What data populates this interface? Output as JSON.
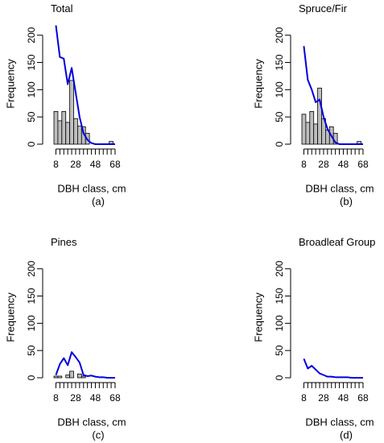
{
  "chart_data": [
    {
      "type": "bar",
      "title": "Total",
      "xlabel": "DBH class, cm",
      "ylabel": "Frequency",
      "caption": "(a)",
      "categories": [
        8,
        12,
        16,
        20,
        24,
        28,
        32,
        36,
        40,
        44,
        48,
        52,
        56,
        60,
        64,
        68
      ],
      "xticks": [
        8,
        28,
        48,
        68
      ],
      "yticks": [
        0,
        50,
        100,
        150,
        200
      ],
      "ylim": [
        0,
        210
      ],
      "bar_color": "#bebebe",
      "line_color": "#0000dd",
      "series": [
        {
          "kind": "bar",
          "values": [
            60,
            43,
            60,
            40,
            117,
            47,
            33,
            32,
            20,
            0,
            0,
            0,
            0,
            0,
            5,
            0
          ]
        },
        {
          "kind": "line",
          "values": [
            218,
            160,
            157,
            110,
            140,
            95,
            50,
            20,
            8,
            2,
            0,
            0,
            0,
            0,
            0,
            0
          ]
        }
      ]
    },
    {
      "type": "bar",
      "title": "Spruce/Fir",
      "xlabel": "DBH class, cm",
      "ylabel": "Frequency",
      "caption": "(b)",
      "categories": [
        8,
        12,
        16,
        20,
        24,
        28,
        32,
        36,
        40,
        44,
        48,
        52,
        56,
        60,
        64,
        68
      ],
      "xticks": [
        8,
        28,
        48,
        68
      ],
      "yticks": [
        0,
        50,
        100,
        150,
        200
      ],
      "ylim": [
        0,
        210
      ],
      "bar_color": "#bebebe",
      "line_color": "#0000dd",
      "series": [
        {
          "kind": "bar",
          "values": [
            55,
            40,
            60,
            37,
            103,
            47,
            26,
            32,
            20,
            0,
            0,
            0,
            0,
            0,
            5,
            0
          ]
        },
        {
          "kind": "line",
          "values": [
            180,
            118,
            100,
            77,
            82,
            50,
            28,
            15,
            3,
            0,
            0,
            0,
            0,
            0,
            0,
            0
          ]
        }
      ]
    },
    {
      "type": "bar",
      "title": "Pines",
      "xlabel": "DBH class, cm",
      "ylabel": "Frequency",
      "caption": "(c)",
      "categories": [
        8,
        12,
        16,
        20,
        24,
        28,
        32,
        36,
        40,
        44,
        48,
        52,
        56,
        60,
        64,
        68
      ],
      "xticks": [
        8,
        28,
        48,
        68
      ],
      "yticks": [
        0,
        50,
        100,
        150,
        200
      ],
      "ylim": [
        0,
        210
      ],
      "bar_color": "#bebebe",
      "line_color": "#0000dd",
      "series": [
        {
          "kind": "bar",
          "values": [
            3,
            3,
            0,
            5,
            12,
            0,
            7,
            3,
            0,
            0,
            0,
            0,
            0,
            0,
            0,
            0
          ]
        },
        {
          "kind": "line",
          "values": [
            5,
            25,
            36,
            23,
            47,
            38,
            28,
            5,
            3,
            4,
            2,
            1,
            1,
            0,
            0,
            0
          ]
        }
      ]
    },
    {
      "type": "bar",
      "title": "Broadleaf Group",
      "xlabel": "DBH class, cm",
      "ylabel": "Frequency",
      "caption": "(d)",
      "categories": [
        8,
        12,
        16,
        20,
        24,
        28,
        32,
        36,
        40,
        44,
        48,
        52,
        56,
        60,
        64,
        68
      ],
      "xticks": [
        8,
        28,
        48,
        68
      ],
      "yticks": [
        0,
        50,
        100,
        150,
        200
      ],
      "ylim": [
        0,
        210
      ],
      "bar_color": "#bebebe",
      "line_color": "#0000dd",
      "series": [
        {
          "kind": "bar",
          "values": [
            0,
            0,
            0,
            0,
            0,
            0,
            0,
            0,
            0,
            0,
            0,
            0,
            0,
            0,
            0,
            0
          ]
        },
        {
          "kind": "line",
          "values": [
            35,
            17,
            22,
            15,
            8,
            5,
            2,
            2,
            1,
            1,
            1,
            1,
            0,
            0,
            0,
            0
          ]
        }
      ]
    }
  ]
}
